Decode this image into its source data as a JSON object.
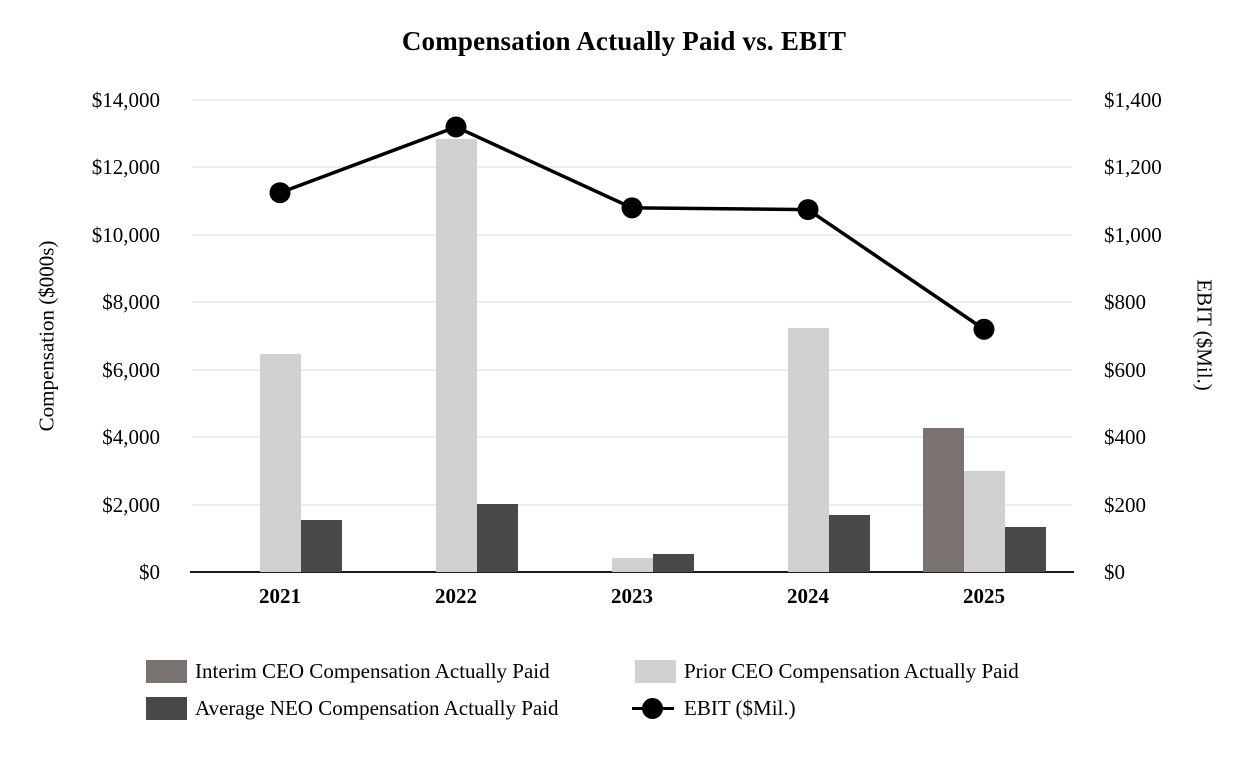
{
  "title": "Compensation Actually Paid vs. EBIT",
  "left_axis": {
    "title": "Compensation ($000s)",
    "ticks": [
      "$0",
      "$2,000",
      "$4,000",
      "$6,000",
      "$8,000",
      "$10,000",
      "$12,000",
      "$14,000"
    ],
    "min": 0,
    "max": 14000
  },
  "right_axis": {
    "title": "EBIT ($Mil.)",
    "ticks": [
      "$0",
      "$200",
      "$400",
      "$600",
      "$800",
      "$1,000",
      "$1,200",
      "$1,400"
    ],
    "min": 0,
    "max": 1400
  },
  "chart_data": {
    "type": "combo-bar-line",
    "title": "Compensation Actually Paid vs. EBIT",
    "categories": [
      "2021",
      "2022",
      "2023",
      "2024",
      "2025"
    ],
    "bar_series": [
      {
        "name": "Interim CEO Compensation Actually Paid",
        "axis": "left",
        "color": "#7a7171",
        "values": [
          null,
          null,
          null,
          null,
          4265
        ]
      },
      {
        "name": "Prior CEO Compensation Actually Paid",
        "axis": "left",
        "color": "#d2d0d0",
        "values": [
          6470,
          12845,
          430,
          7240,
          3000
        ]
      },
      {
        "name": "Average NEO Compensation Actually Paid",
        "axis": "left",
        "color": "#4a4747",
        "values": [
          1550,
          2015,
          540,
          1690,
          1350
        ]
      }
    ],
    "line_series": [
      {
        "name": "EBIT ($Mil.)",
        "axis": "right",
        "color": "#000000",
        "values": [
          1125,
          1320,
          1080,
          1075,
          720
        ]
      }
    ],
    "xlabel": "",
    "ylabel_left": "Compensation ($000s)",
    "ylabel_right": "EBIT ($Mil.)",
    "left_ylim": [
      0,
      14000
    ],
    "right_ylim": [
      0,
      1400
    ],
    "grid": true,
    "legend_position": "bottom"
  },
  "legend": {
    "items": [
      {
        "label": "Interim CEO Compensation Actually Paid",
        "swatch": "bar",
        "color": "#7a7171"
      },
      {
        "label": "Prior CEO Compensation Actually Paid",
        "swatch": "bar",
        "color": "#d2d0d0"
      },
      {
        "label": "Average NEO Compensation Actually Paid",
        "swatch": "bar",
        "color": "#4a4747"
      },
      {
        "label": "EBIT ($Mil.)",
        "swatch": "line-marker",
        "color": "#000000"
      }
    ]
  },
  "colors": {
    "gridline": "#ededed",
    "axis_line": "#1c1c1c",
    "text": "#000000"
  }
}
